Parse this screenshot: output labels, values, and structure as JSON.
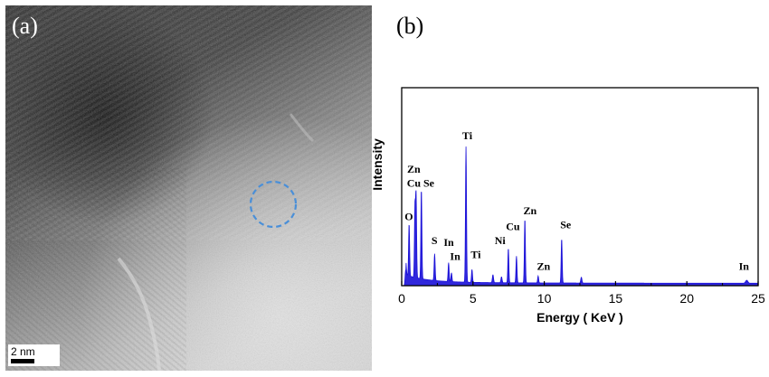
{
  "panel_a": {
    "label": "(a)",
    "scale_bar_text": "2 nm"
  },
  "panel_b": {
    "label": "(b)"
  },
  "chart_data": {
    "type": "line",
    "xlabel": "Energy ( KeV )",
    "ylabel": "Intensity",
    "xlim": [
      0,
      25
    ],
    "ylim": [
      0,
      100
    ],
    "x_ticks": [
      0,
      5,
      10,
      15,
      20,
      25
    ],
    "line_color": "#1a10d8",
    "peaks": [
      {
        "element": "O",
        "energy": 0.52,
        "intensity": 28
      },
      {
        "element": "Zn",
        "energy": 1.01,
        "intensity": 43
      },
      {
        "element": "Cu",
        "energy": 0.93,
        "intensity": 37
      },
      {
        "element": "Se",
        "energy": 1.38,
        "intensity": 47
      },
      {
        "element": "S",
        "energy": 2.31,
        "intensity": 15
      },
      {
        "element": "In",
        "energy": 3.29,
        "intensity": 11
      },
      {
        "element": "In",
        "energy": 3.49,
        "intensity": 6
      },
      {
        "element": "Ti",
        "energy": 4.51,
        "intensity": 70
      },
      {
        "element": "Ti",
        "energy": 4.93,
        "intensity": 8
      },
      {
        "element": "Ni",
        "energy": 7.48,
        "intensity": 19
      },
      {
        "element": "Cu",
        "energy": 8.05,
        "intensity": 15
      },
      {
        "element": "Zn",
        "energy": 8.64,
        "intensity": 34
      },
      {
        "element": "Zn",
        "energy": 9.57,
        "intensity": 5
      },
      {
        "element": "Se",
        "energy": 11.22,
        "intensity": 24
      },
      {
        "element": "In",
        "energy": 24.2,
        "intensity": 3
      }
    ],
    "peak_labels": [
      {
        "text": "O",
        "x": 0.5,
        "y": 33
      },
      {
        "text": "Zn",
        "x": 0.85,
        "y": 57
      },
      {
        "text": "Cu",
        "x": 0.85,
        "y": 50
      },
      {
        "text": "Se",
        "x": 1.9,
        "y": 50
      },
      {
        "text": "S",
        "x": 2.3,
        "y": 21
      },
      {
        "text": "In",
        "x": 3.3,
        "y": 20
      },
      {
        "text": "In",
        "x": 3.75,
        "y": 13
      },
      {
        "text": "Ti",
        "x": 4.6,
        "y": 74
      },
      {
        "text": "Ti",
        "x": 5.2,
        "y": 14
      },
      {
        "text": "Ni",
        "x": 6.9,
        "y": 21
      },
      {
        "text": "Cu",
        "x": 7.8,
        "y": 28
      },
      {
        "text": "Zn",
        "x": 9.0,
        "y": 36
      },
      {
        "text": "Zn",
        "x": 9.95,
        "y": 8
      },
      {
        "text": "Se",
        "x": 11.5,
        "y": 29
      },
      {
        "text": "In",
        "x": 24.0,
        "y": 8
      }
    ]
  }
}
